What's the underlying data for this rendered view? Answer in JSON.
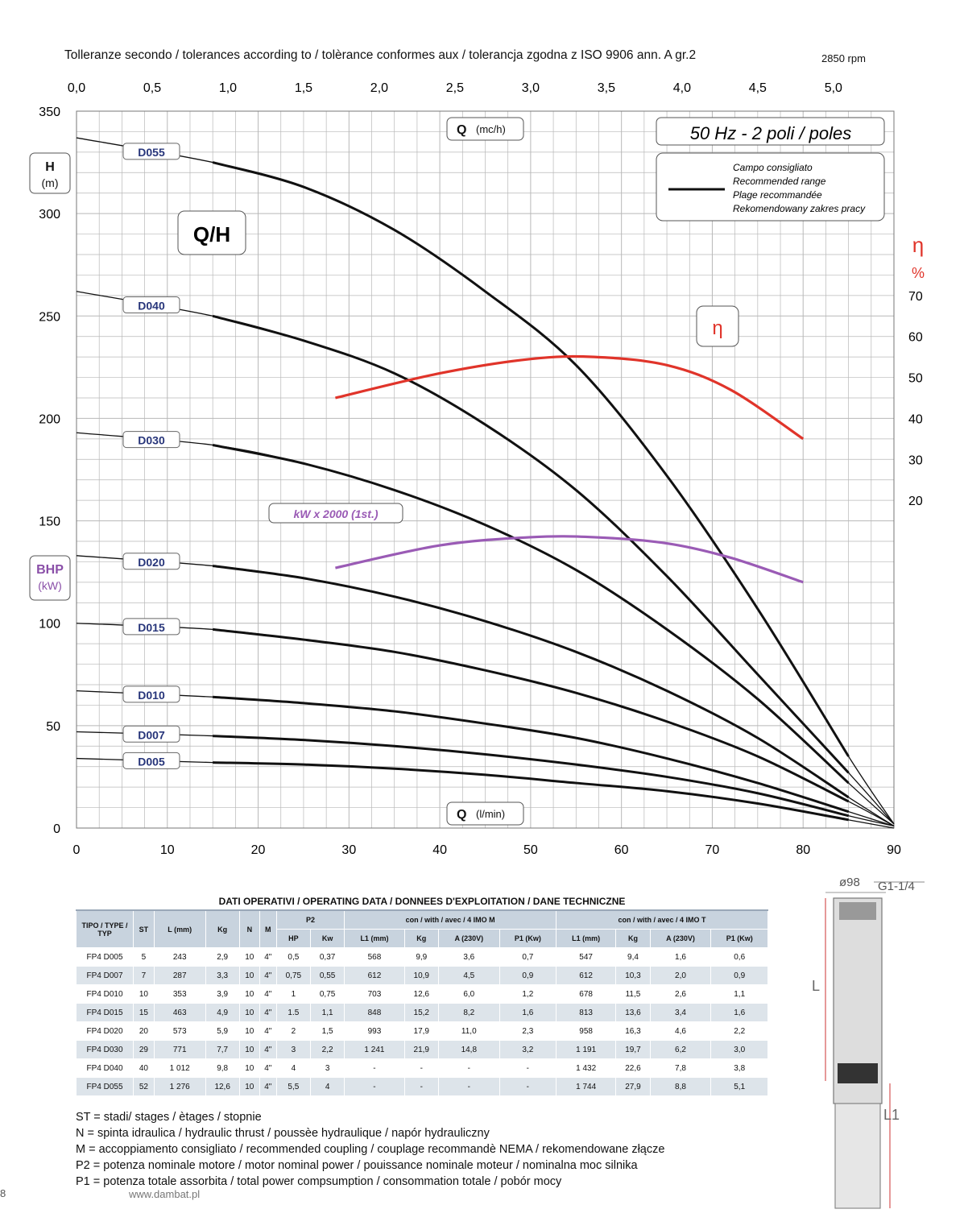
{
  "header": {
    "tolerances": "Tolleranze secondo / tolerances according to / tolèrance conformes aux / tolerancja zgodna z ISO 9906 ann. A gr.2",
    "rpm": "2850 rpm"
  },
  "chart_data": {
    "type": "line",
    "title": "Q/H",
    "badge": "50 Hz - 2 poli / poles",
    "top_axis_label": "Q (mc/h)",
    "top_axis_label_main": "Q",
    "top_axis_label_unit": "(mc/h)",
    "top_ticks": [
      "0,0",
      "0,5",
      "1,0",
      "1,5",
      "2,0",
      "2,5",
      "3,0",
      "3,5",
      "4,0",
      "4,5",
      "5,0"
    ],
    "bottom_axis_label_main": "Q",
    "bottom_axis_label_unit": "(l/min)",
    "bottom_ticks": [
      "0",
      "10",
      "20",
      "30",
      "40",
      "50",
      "60",
      "70",
      "80",
      "90"
    ],
    "xlim": [
      0,
      90
    ],
    "left_axis_h_main": "H",
    "left_axis_h_unit": "(m)",
    "left_axis_bhp_main": "BHP",
    "left_axis_bhp_unit": "(kW)",
    "left_ticks": [
      "0",
      "50",
      "100",
      "150",
      "200",
      "250",
      "300",
      "350"
    ],
    "ylim": [
      0,
      350
    ],
    "right_axis_label_main": "η",
    "right_axis_label_unit": "%",
    "right_ticks": [
      "20",
      "30",
      "40",
      "50",
      "60",
      "70"
    ],
    "right_ticks_h_equiv": [
      160,
      180,
      200,
      220,
      240,
      260
    ],
    "eta_label": "η",
    "kw_label": "kW x 2000 (1st.)",
    "legend": {
      "lines": [
        "Campo consigliato",
        "Recommended range",
        "Plage recommandée",
        "Rekomendowany zakres pracy"
      ]
    },
    "colors": {
      "curve": "#111111",
      "eta": "#e0342a",
      "kw": "#9a5bb5",
      "grid": "#b8b8b8",
      "label_text": "#27357a",
      "bhp": "#8a4fa8"
    },
    "series": [
      {
        "name": "D055",
        "x": [
          0,
          15,
          25,
          35,
          45,
          55,
          65,
          75,
          85,
          90
        ],
        "y": [
          337,
          325,
          313,
          292,
          262,
          226,
          172,
          107,
          35,
          2
        ]
      },
      {
        "name": "D040",
        "x": [
          0,
          15,
          25,
          35,
          45,
          55,
          65,
          75,
          85,
          90
        ],
        "y": [
          262,
          250,
          238,
          222,
          197,
          165,
          123,
          75,
          27,
          2
        ]
      },
      {
        "name": "D030",
        "x": [
          0,
          15,
          25,
          35,
          45,
          55,
          65,
          75,
          85,
          90
        ],
        "y": [
          193,
          187,
          178,
          165,
          148,
          126,
          97,
          63,
          22,
          2
        ]
      },
      {
        "name": "D020",
        "x": [
          0,
          15,
          25,
          35,
          45,
          55,
          65,
          75,
          85,
          90
        ],
        "y": [
          133,
          128,
          122,
          113,
          101,
          86,
          67,
          44,
          15,
          1
        ]
      },
      {
        "name": "D015",
        "x": [
          0,
          15,
          25,
          35,
          45,
          55,
          65,
          75,
          85,
          90
        ],
        "y": [
          100,
          97,
          92,
          86,
          77,
          66,
          52,
          35,
          13,
          1
        ]
      },
      {
        "name": "D010",
        "x": [
          0,
          15,
          25,
          35,
          45,
          55,
          65,
          75,
          85,
          90
        ],
        "y": [
          67,
          64,
          61,
          57,
          51,
          44,
          34,
          22,
          8,
          1
        ]
      },
      {
        "name": "D007",
        "x": [
          0,
          15,
          25,
          35,
          45,
          55,
          65,
          75,
          85,
          90
        ],
        "y": [
          47,
          45,
          43,
          40,
          36,
          31,
          25,
          17,
          6,
          1
        ]
      },
      {
        "name": "D005",
        "x": [
          0,
          15,
          25,
          35,
          45,
          55,
          65,
          75,
          85,
          90
        ],
        "y": [
          34,
          32,
          31,
          29,
          26,
          22,
          18,
          12,
          4,
          0
        ]
      }
    ],
    "eta_series": {
      "x": [
        28.5,
        40,
        50,
        57,
        65,
        72,
        80
      ],
      "eta": [
        45,
        51,
        54.5,
        55,
        53,
        47,
        35
      ]
    },
    "kw_series": {
      "x": [
        28.5,
        40,
        50,
        57,
        65,
        72,
        80
      ],
      "y": [
        127,
        138,
        142,
        142,
        139,
        132,
        120
      ]
    }
  },
  "table": {
    "caption": "DATI OPERATIVI / OPERATING DATA / DONNEES D'EXPLOITATION / DANE TECHNICZNE",
    "head_type": "TIPO / TYPE / TYP",
    "head_st": "ST",
    "head_l": "L (mm)",
    "head_kg": "Kg",
    "head_n": "N",
    "head_m": "M",
    "head_p2": "P2",
    "head_group1": "con / with / avec / 4 IMO M",
    "head_group2": "con / with / avec / 4 IMO T",
    "sub_hp": "HP",
    "sub_kw": "Kw",
    "sub_l1": "L1 (mm)",
    "sub_kg": "Kg",
    "sub_a": "A (230V)",
    "sub_p1": "P1 (Kw)",
    "rows": [
      [
        "FP4 D005",
        "5",
        "243",
        "2,9",
        "10",
        "4\"",
        "0,5",
        "0,37",
        "568",
        "9,9",
        "3,6",
        "0,7",
        "547",
        "9,4",
        "1,6",
        "0,6"
      ],
      [
        "FP4 D007",
        "7",
        "287",
        "3,3",
        "10",
        "4\"",
        "0,75",
        "0,55",
        "612",
        "10,9",
        "4,5",
        "0,9",
        "612",
        "10,3",
        "2,0",
        "0,9"
      ],
      [
        "FP4 D010",
        "10",
        "353",
        "3,9",
        "10",
        "4\"",
        "1",
        "0,75",
        "703",
        "12,6",
        "6,0",
        "1,2",
        "678",
        "11,5",
        "2,6",
        "1,1"
      ],
      [
        "FP4 D015",
        "15",
        "463",
        "4,9",
        "10",
        "4\"",
        "1.5",
        "1,1",
        "848",
        "15,2",
        "8,2",
        "1,6",
        "813",
        "13,6",
        "3,4",
        "1,6"
      ],
      [
        "FP4 D020",
        "20",
        "573",
        "5,9",
        "10",
        "4\"",
        "2",
        "1,5",
        "993",
        "17,9",
        "11,0",
        "2,3",
        "958",
        "16,3",
        "4,6",
        "2,2"
      ],
      [
        "FP4 D030",
        "29",
        "771",
        "7,7",
        "10",
        "4\"",
        "3",
        "2,2",
        "1 241",
        "21,9",
        "14,8",
        "3,2",
        "1 191",
        "19,7",
        "6,2",
        "3,0"
      ],
      [
        "FP4 D040",
        "40",
        "1 012",
        "9,8",
        "10",
        "4\"",
        "4",
        "3",
        "-",
        "-",
        "-",
        "-",
        "1 432",
        "22,6",
        "7,8",
        "3,8"
      ],
      [
        "FP4 D055",
        "52",
        "1 276",
        "12,6",
        "10",
        "4\"",
        "5,5",
        "4",
        "-",
        "-",
        "-",
        "-",
        "1 744",
        "27,9",
        "8,8",
        "5,1"
      ]
    ]
  },
  "notes": [
    "ST = stadi/ stages / ètages / stopnie",
    "N  = spinta idraulica / hydraulic thrust / poussèe hydraulique / napór hydrauliczny",
    "M  = accoppiamento consigliato / recommended coupling / couplage recommandè     NEMA / rekomendowane złącze",
    "P2 = potenza nominale motore / motor nominal power / pouissance nominale moteur / nominalna moc silnika",
    "P1 = potenza totale assorbita / total power compsumption / consommation totale / pobór mocy"
  ],
  "footer": {
    "page": "8",
    "website": "www.dambat.pl"
  },
  "drawing": {
    "diameter": "ø98",
    "thread": "G1-1/4",
    "l_label": "L",
    "l1_label": "L1"
  }
}
